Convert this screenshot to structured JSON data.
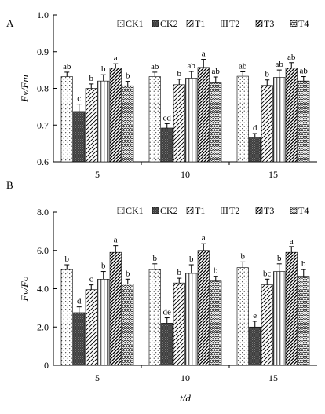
{
  "chart_data": [
    {
      "panel_label": "A",
      "type": "bar",
      "ylabel": "Fv/Fm",
      "xlabel": "",
      "categories": [
        "5",
        "10",
        "15"
      ],
      "ylim": [
        0.6,
        1.0
      ],
      "yticks": [
        "0.6",
        "0.7",
        "0.8",
        "0.9",
        "1.0"
      ],
      "legend_position": "top",
      "series": [
        {
          "name": "CK1",
          "values": [
            0.832,
            0.832,
            0.833
          ],
          "errors": [
            0.012,
            0.012,
            0.012
          ],
          "letters": [
            "ab",
            "ab",
            "ab"
          ]
        },
        {
          "name": "CK2",
          "values": [
            0.737,
            0.692,
            0.667
          ],
          "errors": [
            0.02,
            0.012,
            0.01
          ],
          "letters": [
            "c",
            "cd",
            "d"
          ]
        },
        {
          "name": "T1",
          "values": [
            0.8,
            0.81,
            0.808
          ],
          "errors": [
            0.012,
            0.015,
            0.015
          ],
          "letters": [
            "b",
            "b",
            "b"
          ]
        },
        {
          "name": "T2",
          "values": [
            0.82,
            0.828,
            0.83
          ],
          "errors": [
            0.017,
            0.018,
            0.02
          ],
          "letters": [
            "b",
            "ab",
            "ab"
          ]
        },
        {
          "name": "T3",
          "values": [
            0.855,
            0.857,
            0.855
          ],
          "errors": [
            0.012,
            0.022,
            0.015
          ],
          "letters": [
            "a",
            "a",
            "ab"
          ]
        },
        {
          "name": "T4",
          "values": [
            0.807,
            0.815,
            0.82
          ],
          "errors": [
            0.012,
            0.016,
            0.012
          ],
          "letters": [
            "b",
            "ab",
            "ab"
          ]
        }
      ]
    },
    {
      "panel_label": "B",
      "type": "bar",
      "ylabel": "Fv/Fo",
      "xlabel": "t/d",
      "categories": [
        "5",
        "10",
        "15"
      ],
      "ylim": [
        0,
        8.0
      ],
      "yticks": [
        "0",
        "2.0",
        "4.0",
        "6.0",
        "8.0"
      ],
      "legend_position": "top",
      "series": [
        {
          "name": "CK1",
          "values": [
            5.0,
            5.0,
            5.1
          ],
          "errors": [
            0.25,
            0.3,
            0.3
          ],
          "letters": [
            "b",
            "b",
            "b"
          ]
        },
        {
          "name": "CK2",
          "values": [
            2.75,
            2.2,
            2.0
          ],
          "errors": [
            0.3,
            0.28,
            0.3
          ],
          "letters": [
            "d",
            "de",
            "e"
          ]
        },
        {
          "name": "T1",
          "values": [
            3.95,
            4.3,
            4.2
          ],
          "errors": [
            0.25,
            0.25,
            0.3
          ],
          "letters": [
            "c",
            "b",
            "bc"
          ]
        },
        {
          "name": "T2",
          "values": [
            4.5,
            4.8,
            4.9
          ],
          "errors": [
            0.4,
            0.45,
            0.4
          ],
          "letters": [
            "b",
            "b",
            "b"
          ]
        },
        {
          "name": "T3",
          "values": [
            5.9,
            6.0,
            5.9
          ],
          "errors": [
            0.35,
            0.35,
            0.3
          ],
          "letters": [
            "a",
            "a",
            "a"
          ]
        },
        {
          "name": "T4",
          "values": [
            4.25,
            4.4,
            4.65
          ],
          "errors": [
            0.25,
            0.25,
            0.35
          ],
          "letters": [
            "b",
            "b",
            "b"
          ]
        }
      ]
    }
  ]
}
